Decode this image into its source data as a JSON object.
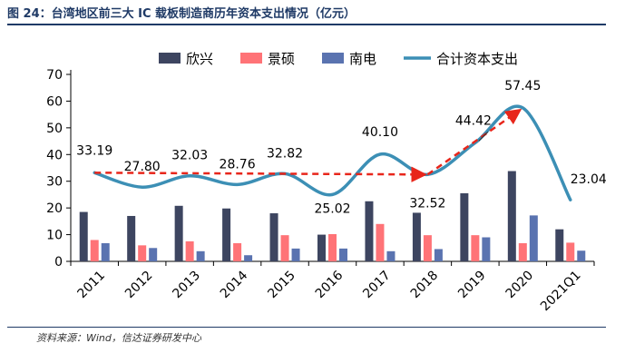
{
  "figure_title": "图 24：台湾地区前三大 IC 载板制造商历年资本支出情况（亿元）",
  "source": "资料来源：Wind，信达证券研发中心",
  "chart_data": {
    "type": "bar",
    "categories": [
      "2011",
      "2012",
      "2013",
      "2014",
      "2015",
      "2016",
      "2017",
      "2018",
      "2019",
      "2020",
      "2021Q1"
    ],
    "series": [
      {
        "name": "欣兴",
        "values": [
          18.5,
          17.0,
          20.8,
          19.8,
          18.0,
          10.0,
          22.5,
          18.2,
          25.5,
          33.8,
          12.0
        ],
        "color": "#3d4560"
      },
      {
        "name": "景硕",
        "values": [
          8.0,
          6.0,
          7.5,
          6.8,
          9.8,
          10.2,
          14.0,
          9.8,
          9.8,
          6.8,
          7.0
        ],
        "color": "#ff7377"
      },
      {
        "name": "南电",
        "values": [
          6.8,
          5.0,
          3.8,
          2.3,
          4.8,
          4.8,
          3.8,
          4.6,
          9.0,
          17.2,
          4.0
        ],
        "color": "#5a73b0"
      },
      {
        "name": "合计资本支出",
        "type": "line",
        "values": [
          33.19,
          27.8,
          32.03,
          28.76,
          32.82,
          25.02,
          40.1,
          32.52,
          44.42,
          57.45,
          23.04
        ],
        "color": "#3c8fb5"
      }
    ],
    "data_labels": [
      "33.19",
      "27.80",
      "32.03",
      "28.76",
      "32.82",
      "25.02",
      "40.10",
      "32.52",
      "44.42",
      "57.45",
      "23.04"
    ],
    "ylim": [
      0,
      70
    ],
    "yticks": [
      0,
      10,
      20,
      30,
      40,
      50,
      60,
      70
    ],
    "xlabel": "",
    "ylabel": "",
    "legend_position": "top",
    "annotations": [
      {
        "type": "dashed-arrow",
        "color": "#e8261b",
        "from": [
          "2011",
          33.19
        ],
        "to": [
          "2018",
          32.52
        ]
      },
      {
        "type": "dashed-arrow",
        "color": "#e8261b",
        "from": [
          "2018",
          32.52
        ],
        "to": [
          "2020",
          57.45
        ]
      }
    ]
  }
}
